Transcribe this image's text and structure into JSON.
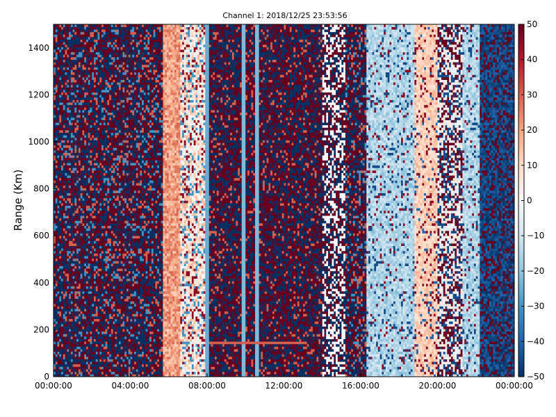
{
  "chart_data": {
    "type": "heatmap",
    "title": "Channel 1: 2018/12/25 23:53:56",
    "ylabel": "Range (Km)",
    "xlabel": "",
    "x_range": [
      "00:00:00",
      "24:00:00"
    ],
    "x_ticks": [
      "00:00:00",
      "04:00:00",
      "08:00:00",
      "12:00:00",
      "16:00:00",
      "20:00:00",
      "00:00:00"
    ],
    "ylim": [
      0,
      1500
    ],
    "y_ticks": [
      "0",
      "200",
      "400",
      "600",
      "800",
      "1000",
      "1200",
      "1400"
    ],
    "colorbar": {
      "range": [
        -50,
        50
      ],
      "ticks": [
        "50",
        "40",
        "30",
        "20",
        "10",
        "0",
        "−10",
        "−20",
        "−30",
        "−40",
        "−50"
      ],
      "colormap": "RdBu_r",
      "colors": [
        "#053061",
        "#2166ac",
        "#4393c3",
        "#92c5de",
        "#d1e5f0",
        "#f7f7f7",
        "#fddbc7",
        "#f4a582",
        "#d6604d",
        "#b2182b",
        "#67001f"
      ]
    },
    "grid": false,
    "time_bands_hours": [
      {
        "start": 0.0,
        "end": 5.7,
        "pattern": "noise",
        "note_values": [
          -50,
          50
        ]
      },
      {
        "start": 5.7,
        "end": 6.6,
        "pattern": "warm",
        "value": 20
      },
      {
        "start": 6.6,
        "end": 7.9,
        "pattern": "mixed-light",
        "value": 5
      },
      {
        "start": 7.9,
        "end": 14.0,
        "pattern": "noise-cold-stripes",
        "value": -30
      },
      {
        "start": 14.0,
        "end": 15.2,
        "pattern": "noise-white",
        "value": 0
      },
      {
        "start": 15.2,
        "end": 16.3,
        "pattern": "noise",
        "value": 0
      },
      {
        "start": 16.3,
        "end": 18.8,
        "pattern": "light-blue",
        "value": -12
      },
      {
        "start": 18.8,
        "end": 20.0,
        "pattern": "light-warm",
        "value": 10
      },
      {
        "start": 20.0,
        "end": 21.3,
        "pattern": "mixed",
        "value": -5
      },
      {
        "start": 21.3,
        "end": 22.2,
        "pattern": "light-blue",
        "value": -15
      },
      {
        "start": 22.2,
        "end": 24.0,
        "pattern": "cold",
        "value": -40
      }
    ]
  }
}
